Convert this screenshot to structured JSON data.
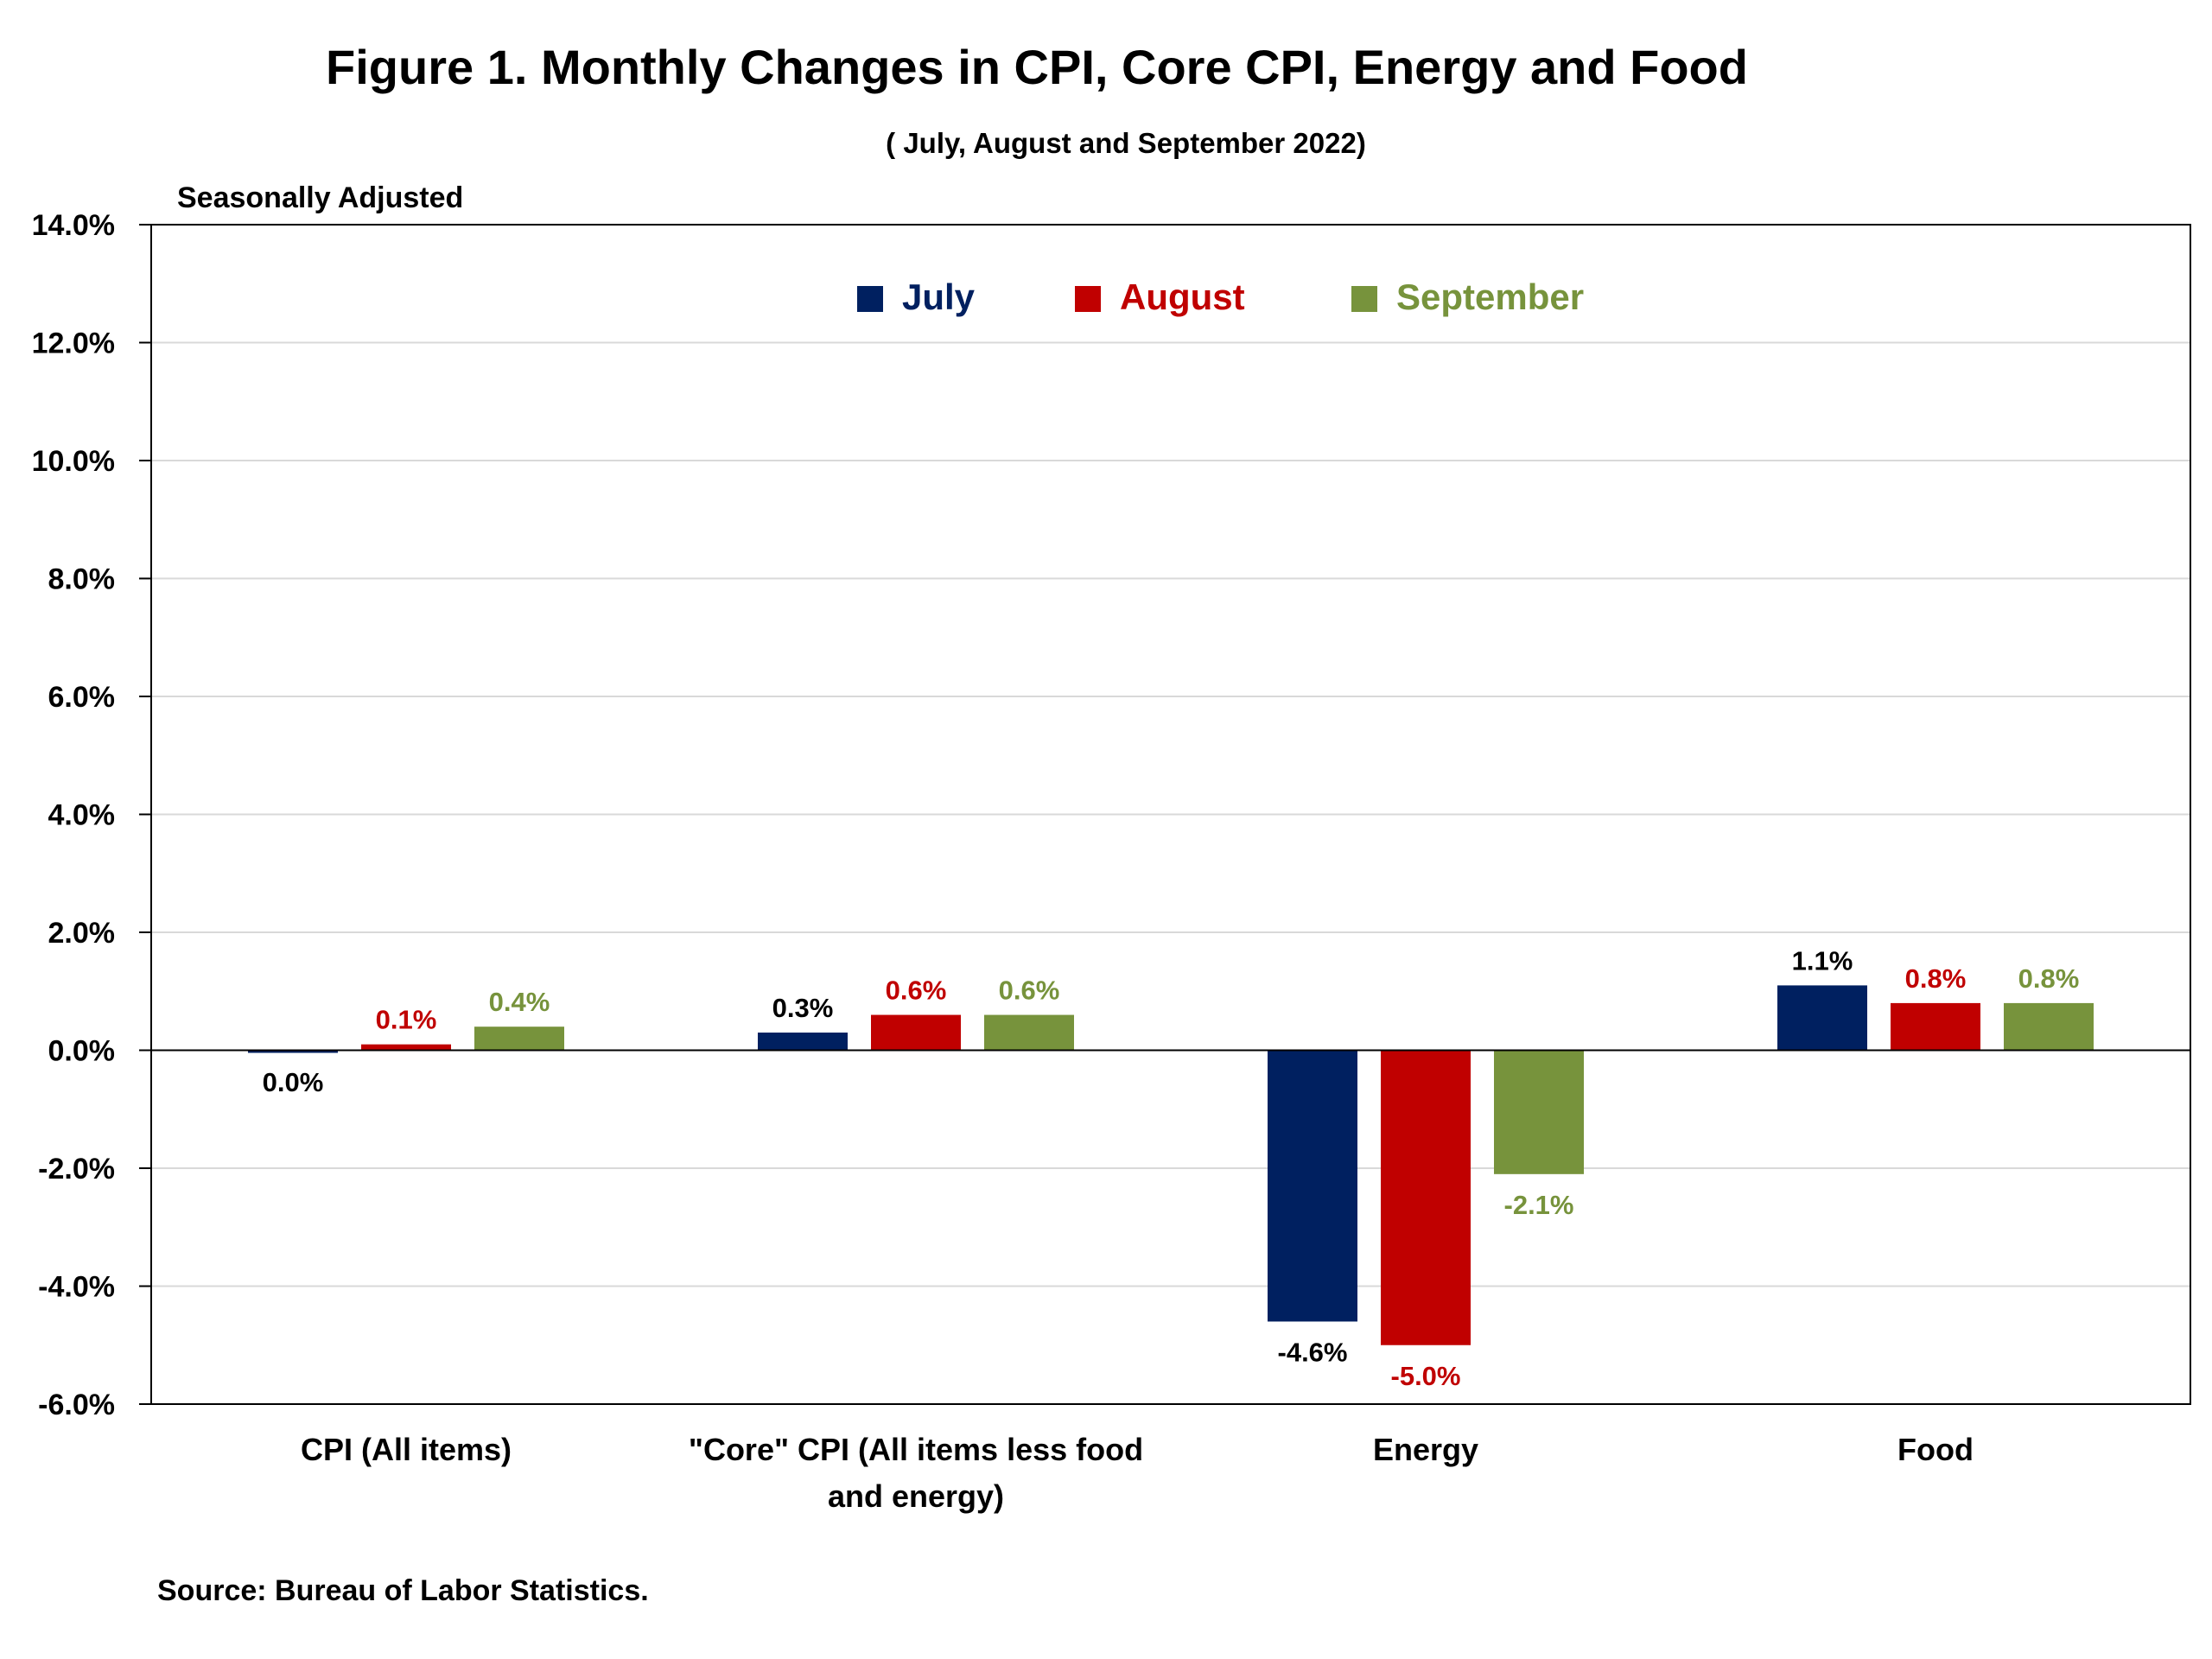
{
  "chart_data": {
    "type": "bar",
    "title": "Figure 1. Monthly Changes in CPI, Core CPI, Energy and Food",
    "subtitle": "( July, August and September 2022)",
    "yaxis_note": "Seasonally Adjusted",
    "source": "Source: Bureau of Labor Statistics.",
    "categories": [
      [
        "CPI (All items)"
      ],
      [
        "\"Core\" CPI (All items less food",
        "and energy)"
      ],
      [
        "Energy"
      ],
      [
        "Food"
      ]
    ],
    "series": [
      {
        "name": "July",
        "color": "#002060",
        "values": [
          -0.02,
          0.3,
          -4.6,
          1.1
        ],
        "labels": [
          "0.0%",
          "0.3%",
          "-4.6%",
          "1.1%"
        ],
        "label_color": "#000000"
      },
      {
        "name": "August",
        "color": "#C00000",
        "values": [
          0.1,
          0.6,
          -5.0,
          0.8
        ],
        "labels": [
          "0.1%",
          "0.6%",
          "-5.0%",
          "0.8%"
        ],
        "label_color": "#C00000"
      },
      {
        "name": "September",
        "color": "#77933C",
        "values": [
          0.4,
          0.6,
          -2.1,
          0.8
        ],
        "labels": [
          "0.4%",
          "0.6%",
          "-2.1%",
          "0.8%"
        ],
        "label_color": "#77933C"
      }
    ],
    "ylim": [
      -6,
      14
    ],
    "yticks": [
      -6,
      -4,
      -2,
      0,
      2,
      4,
      6,
      8,
      10,
      12,
      14
    ],
    "ytick_labels": [
      "-6.0%",
      "-4.0%",
      "-2.0%",
      "0.0%",
      "2.0%",
      "4.0%",
      "6.0%",
      "8.0%",
      "10.0%",
      "12.0%",
      "14.0%"
    ],
    "grid": true,
    "legend_position": "top-center",
    "xlabel": "",
    "ylabel": ""
  }
}
